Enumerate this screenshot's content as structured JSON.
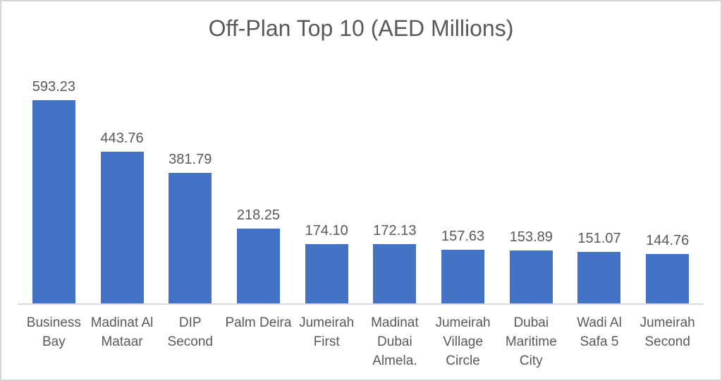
{
  "chart_data": {
    "type": "bar",
    "title": "Off-Plan Top 10 (AED Millions)",
    "categories": [
      "Business Bay",
      "Madinat Al Mataar",
      "DIP Second",
      "Palm Deira",
      "Jumeirah First",
      "Madinat Dubai Almela.",
      "Jumeirah Village Circle",
      "Dubai Maritime City",
      "Wadi Al Safa 5",
      "Jumeirah Second"
    ],
    "category_lines": [
      [
        "Business",
        "Bay"
      ],
      [
        "Madinat Al",
        "Mataar"
      ],
      [
        "DIP",
        "Second"
      ],
      [
        "Palm Deira"
      ],
      [
        "Jumeirah",
        "First"
      ],
      [
        "Madinat",
        "Dubai",
        "Almela."
      ],
      [
        "Jumeirah",
        "Village",
        "Circle"
      ],
      [
        "Dubai",
        "Maritime",
        "City"
      ],
      [
        "Wadi Al",
        "Safa 5"
      ],
      [
        "Jumeirah",
        "Second"
      ]
    ],
    "values": [
      593.23,
      443.76,
      381.79,
      218.25,
      174.1,
      172.13,
      157.63,
      153.89,
      151.07,
      144.76
    ],
    "value_labels": [
      "593.23",
      "443.76",
      "381.79",
      "218.25",
      "174.10",
      "172.13",
      "157.63",
      "153.89",
      "151.07",
      "144.76"
    ],
    "xlabel": "",
    "ylabel": "",
    "ylim": [
      0,
      650
    ],
    "grid": false,
    "legend_position": "none",
    "bar_color": "#4472C4",
    "text_color": "#595959",
    "axis_line_color": "#D9D9D9",
    "background_color": "#FFFFFF"
  }
}
